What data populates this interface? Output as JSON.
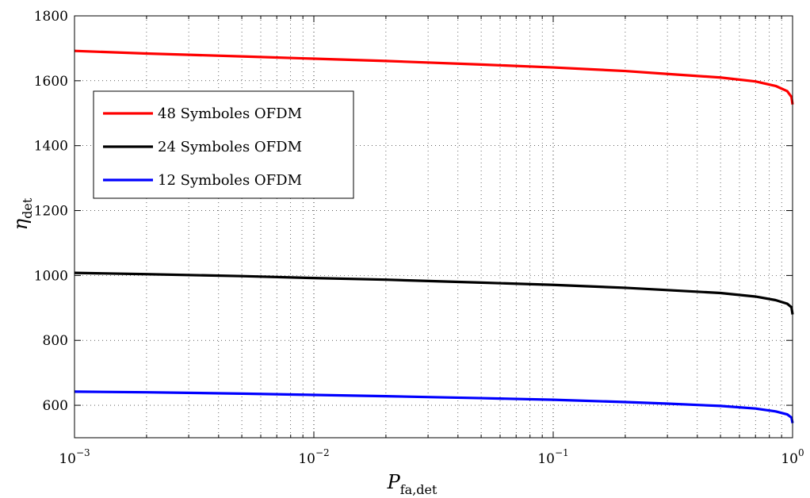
{
  "chart_data": {
    "type": "line",
    "xscale": "log",
    "xlim": [
      0.001,
      1
    ],
    "ylim": [
      500,
      1800
    ],
    "grid": true,
    "legend_position": "upper-left",
    "xlabel": {
      "main": "P",
      "sub": "fa,det"
    },
    "ylabel": {
      "main": "η",
      "sub": "det"
    },
    "x_ticks": [
      {
        "value": 0.001,
        "base": "10",
        "exp": "−3"
      },
      {
        "value": 0.01,
        "base": "10",
        "exp": "−2"
      },
      {
        "value": 0.1,
        "base": "10",
        "exp": "−1"
      },
      {
        "value": 1,
        "base": "10",
        "exp": "0"
      }
    ],
    "y_ticks": [
      {
        "value": 600,
        "label": "600"
      },
      {
        "value": 800,
        "label": "800"
      },
      {
        "value": 1000,
        "label": "1000"
      },
      {
        "value": 1200,
        "label": "1200"
      },
      {
        "value": 1400,
        "label": "1400"
      },
      {
        "value": 1600,
        "label": "1600"
      },
      {
        "value": 1800,
        "label": "1800"
      }
    ],
    "series": [
      {
        "name": "48 Symboles OFDM",
        "color": "#ff0000",
        "x": [
          0.001,
          0.002,
          0.005,
          0.01,
          0.02,
          0.05,
          0.1,
          0.2,
          0.3,
          0.5,
          0.7,
          0.85,
          0.95,
          0.99,
          1.0
        ],
        "y": [
          1692,
          1684,
          1675,
          1668,
          1661,
          1650,
          1641,
          1630,
          1621,
          1610,
          1598,
          1584,
          1568,
          1550,
          1527
        ]
      },
      {
        "name": "24 Symboles OFDM",
        "color": "#000000",
        "x": [
          0.001,
          0.002,
          0.005,
          0.01,
          0.02,
          0.05,
          0.1,
          0.2,
          0.3,
          0.5,
          0.7,
          0.85,
          0.95,
          0.99,
          1.0
        ],
        "y": [
          1008,
          1004,
          998,
          992,
          987,
          978,
          971,
          962,
          955,
          946,
          935,
          924,
          913,
          902,
          880
        ]
      },
      {
        "name": "12 Symboles OFDM",
        "color": "#0000ff",
        "x": [
          0.001,
          0.002,
          0.005,
          0.01,
          0.02,
          0.05,
          0.1,
          0.2,
          0.3,
          0.5,
          0.7,
          0.85,
          0.95,
          0.99,
          1.0
        ],
        "y": [
          642,
          640,
          636,
          632,
          628,
          622,
          617,
          610,
          605,
          598,
          590,
          581,
          572,
          562,
          545
        ]
      }
    ]
  }
}
